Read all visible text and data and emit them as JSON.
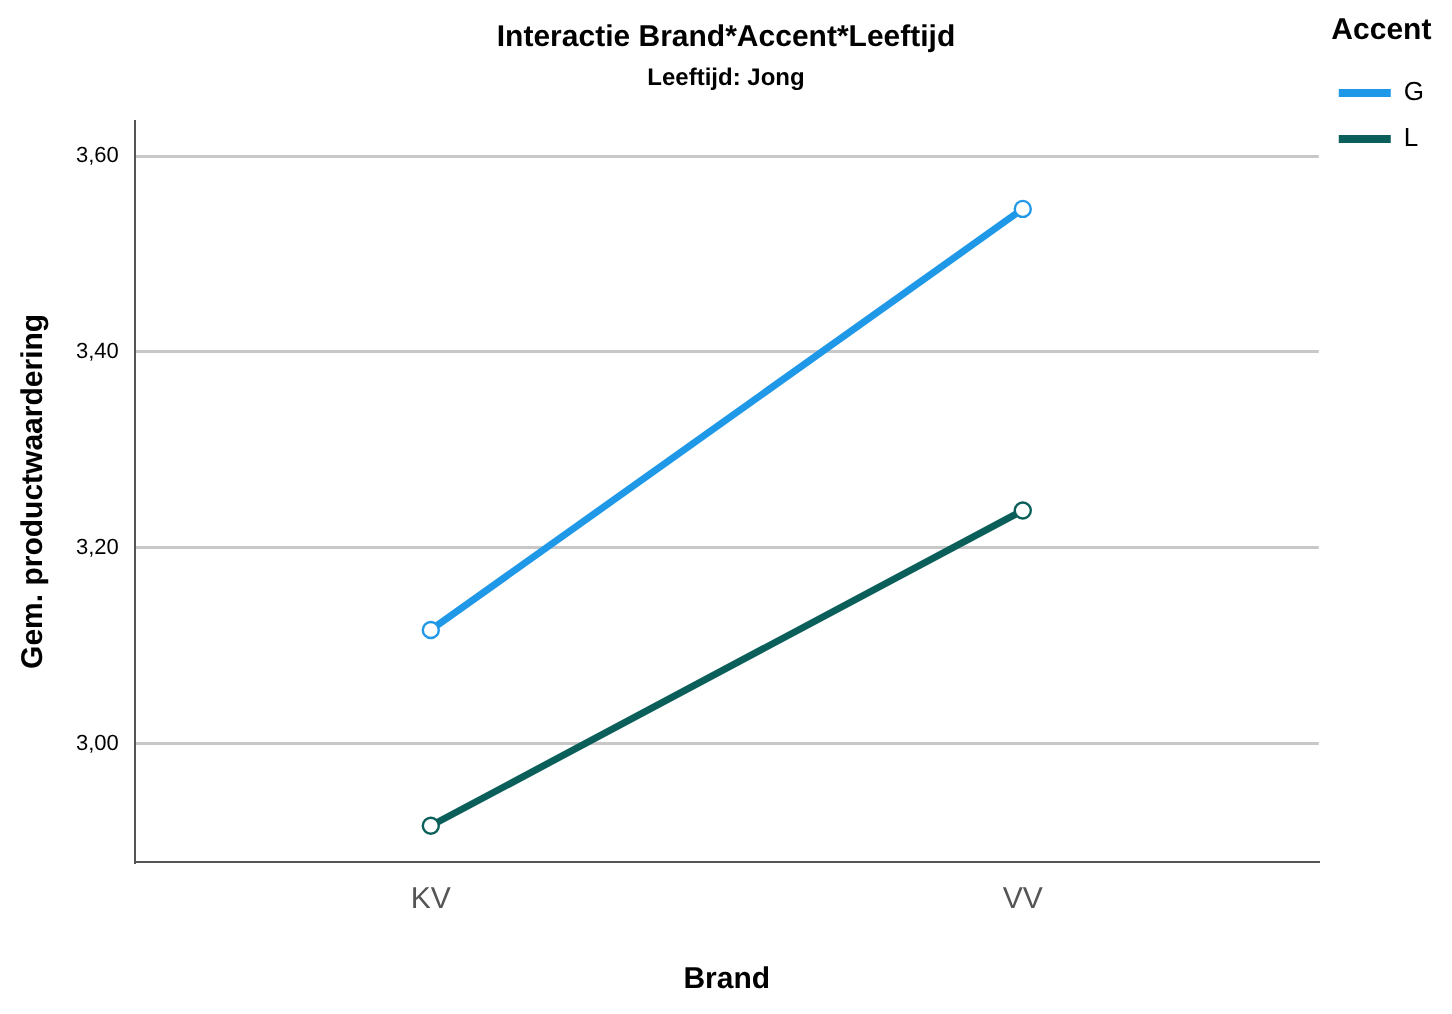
{
  "chart_data": {
    "type": "line",
    "title": "Interactie Brand*Accent*Leeftijd",
    "subtitle": "Leeftijd: Jong",
    "xlabel": "Brand",
    "ylabel": "Gem. productwaardering",
    "legend_title": "Accent",
    "categories": [
      "KV",
      "VV"
    ],
    "series": [
      {
        "name": "G",
        "color": "#1f98e8",
        "values": [
          3.116,
          3.546
        ]
      },
      {
        "name": "L",
        "color": "#0b5f5a",
        "values": [
          2.916,
          3.238
        ]
      }
    ],
    "ylim": [
      2.879,
      3.636
    ],
    "yticks": [
      {
        "value": 3.0,
        "label": "3,00"
      },
      {
        "value": 3.2,
        "label": "3,20"
      },
      {
        "value": 3.4,
        "label": "3,40"
      },
      {
        "value": 3.6,
        "label": "3,60"
      }
    ],
    "grid": "y",
    "legend": "top right",
    "marker": "circle",
    "line_style": "solid"
  }
}
